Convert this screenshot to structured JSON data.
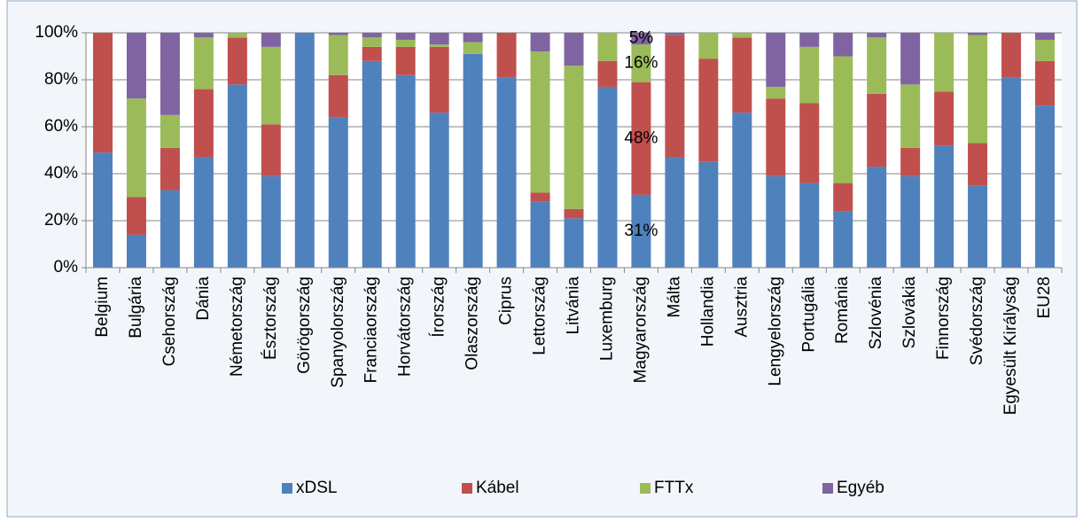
{
  "chart_data": {
    "type": "stacked_bar",
    "categories": [
      "Belgium",
      "Bulgária",
      "Csehország",
      "Dánia",
      "Németország",
      "Észtország",
      "Görögország",
      "Spanyolország",
      "Franciaország",
      "Horvátország",
      "Írország",
      "Olaszország",
      "Ciprus",
      "Lettország",
      "Litvánia",
      "Luxemburg",
      "Magyarország",
      "Málta",
      "Hollandia",
      "Ausztria",
      "Lengyelország",
      "Portugália",
      "Románia",
      "Szlovénia",
      "Szlovákia",
      "Finnország",
      "Svédország",
      "Egyesült Királyság",
      "EU28"
    ],
    "series": [
      {
        "name": "xDSL",
        "color": "#4f81bd",
        "values": [
          49,
          14,
          33,
          47,
          78,
          39,
          100,
          64,
          88,
          82,
          66,
          91,
          81,
          28,
          21,
          77,
          31,
          47,
          45,
          66,
          39,
          36,
          24,
          43,
          39,
          52,
          35,
          81,
          69
        ],
        "value_labels": [
          null,
          null,
          null,
          null,
          null,
          null,
          null,
          null,
          null,
          null,
          null,
          null,
          null,
          null,
          null,
          null,
          "31%",
          null,
          null,
          null,
          null,
          null,
          null,
          null,
          null,
          null,
          null,
          null,
          null
        ]
      },
      {
        "name": "Kábel",
        "color": "#c0504d",
        "values": [
          51,
          16,
          18,
          29,
          20,
          22,
          0,
          18,
          6,
          12,
          28,
          0,
          19,
          4,
          4,
          11,
          48,
          52,
          44,
          32,
          33,
          34,
          12,
          31,
          12,
          23,
          18,
          19,
          19
        ],
        "value_labels": [
          null,
          null,
          null,
          null,
          null,
          null,
          null,
          null,
          null,
          null,
          null,
          null,
          null,
          null,
          null,
          null,
          "48%",
          null,
          null,
          null,
          null,
          null,
          null,
          null,
          null,
          null,
          null,
          null,
          null
        ]
      },
      {
        "name": "FTTx",
        "color": "#9bbb59",
        "values": [
          0,
          42,
          14,
          22,
          2,
          33,
          0,
          17,
          4,
          3,
          1,
          5,
          0,
          60,
          61,
          12,
          16,
          0,
          11,
          2,
          5,
          24,
          54,
          24,
          27,
          25,
          46,
          0,
          9
        ],
        "value_labels": [
          null,
          null,
          null,
          null,
          null,
          null,
          null,
          null,
          null,
          null,
          null,
          null,
          null,
          null,
          null,
          null,
          "16%",
          null,
          null,
          null,
          null,
          null,
          null,
          null,
          null,
          null,
          null,
          null,
          null
        ]
      },
      {
        "name": "Egyéb",
        "color": "#8064a2",
        "values": [
          0,
          28,
          35,
          2,
          0,
          6,
          0,
          1,
          2,
          3,
          5,
          4,
          0,
          8,
          14,
          0,
          5,
          1,
          0,
          0,
          23,
          6,
          10,
          2,
          22,
          0,
          1,
          0,
          3
        ],
        "value_labels": [
          null,
          null,
          null,
          null,
          null,
          null,
          null,
          null,
          null,
          null,
          null,
          null,
          null,
          null,
          null,
          null,
          "5%",
          null,
          null,
          null,
          null,
          null,
          null,
          null,
          null,
          null,
          null,
          null,
          null
        ]
      }
    ],
    "ylim": [
      0,
      100
    ],
    "yticks": [
      {
        "value": 0,
        "label": "0%"
      },
      {
        "value": 20,
        "label": "20%"
      },
      {
        "value": 40,
        "label": "40%"
      },
      {
        "value": 60,
        "label": "60%"
      },
      {
        "value": 80,
        "label": "80%"
      },
      {
        "value": 100,
        "label": "100%"
      }
    ],
    "grid": true,
    "legend": "bottom"
  }
}
